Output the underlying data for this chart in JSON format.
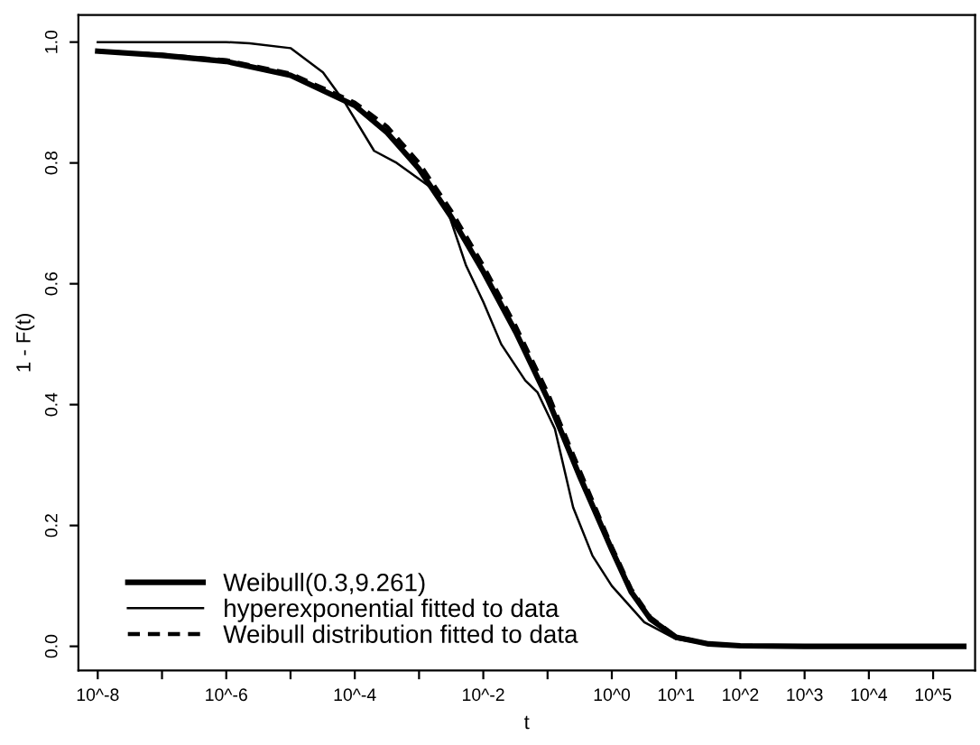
{
  "chart_data": {
    "type": "line",
    "xlabel": "t",
    "ylabel": "1 - F(t)",
    "log": "x",
    "grid": false,
    "legend": "bottom left",
    "marker": "none",
    "xlim": [
      5e-09,
      450000.0
    ],
    "ylim": [
      -0.04,
      1.045
    ],
    "xticks": [
      {
        "value": 1e-08,
        "label": "10^-8"
      },
      {
        "value": 1e-07,
        "label": null
      },
      {
        "value": 1e-06,
        "label": "10^-6"
      },
      {
        "value": 1e-05,
        "label": null
      },
      {
        "value": 0.0001,
        "label": "10^-4"
      },
      {
        "value": 0.001,
        "label": null
      },
      {
        "value": 0.01,
        "label": "10^-2"
      },
      {
        "value": 0.1,
        "label": null
      },
      {
        "value": 1,
        "label": "10^0"
      },
      {
        "value": 10,
        "label": "10^1"
      },
      {
        "value": 100,
        "label": "10^2"
      },
      {
        "value": 1000,
        "label": "10^3"
      },
      {
        "value": 10000,
        "label": "10^4"
      },
      {
        "value": 100000,
        "label": "10^5"
      }
    ],
    "yticks": [
      {
        "value": 0,
        "label": "0.0"
      },
      {
        "value": 0.2,
        "label": "0.2"
      },
      {
        "value": 0.4,
        "label": "0.4"
      },
      {
        "value": 0.6,
        "label": "0.6"
      },
      {
        "value": 0.8,
        "label": "0.8"
      },
      {
        "value": 1,
        "label": "1.0"
      }
    ],
    "series": [
      {
        "name": "Weibull(0.3,9.261)",
        "color": "#000000",
        "line_style": "solid",
        "x": [
          1e-08,
          1e-07,
          1e-06,
          1e-05,
          0.0001,
          0.00032,
          0.001,
          0.0032,
          0.01,
          0.032,
          0.1,
          0.32,
          1,
          2,
          4,
          10,
          32,
          100,
          1000,
          300000
        ],
        "values": [
          0.985,
          0.978,
          0.968,
          0.945,
          0.895,
          0.85,
          0.79,
          0.71,
          0.62,
          0.52,
          0.41,
          0.28,
          0.16,
          0.09,
          0.045,
          0.015,
          0.004,
          0.001,
          0,
          0
        ]
      },
      {
        "name": "hyperexponential fitted to data",
        "color": "#000000",
        "line_style": "solid",
        "x": [
          1e-08,
          1e-06,
          2.3e-06,
          1e-05,
          3.2e-05,
          7e-05,
          0.0002,
          0.00045,
          0.0015,
          0.0028,
          0.0054,
          0.01,
          0.019,
          0.045,
          0.07,
          0.13,
          0.25,
          0.5,
          1,
          3.2,
          10,
          32,
          100,
          300000
        ],
        "values": [
          1.0,
          1.0,
          0.998,
          0.99,
          0.95,
          0.9,
          0.82,
          0.8,
          0.76,
          0.72,
          0.63,
          0.57,
          0.5,
          0.44,
          0.42,
          0.36,
          0.23,
          0.15,
          0.1,
          0.04,
          0.012,
          0.003,
          0,
          0
        ]
      },
      {
        "name": "Weibull distribution fitted to data",
        "color": "#000000",
        "line_style": "dashed",
        "x": [
          1e-08,
          1e-07,
          1e-06,
          1e-05,
          0.0001,
          0.00032,
          0.001,
          0.0032,
          0.01,
          0.032,
          0.1,
          0.32,
          1,
          2,
          4,
          10,
          32,
          100,
          1000,
          300000
        ],
        "values": [
          0.985,
          0.979,
          0.97,
          0.948,
          0.9,
          0.86,
          0.8,
          0.72,
          0.63,
          0.53,
          0.42,
          0.29,
          0.165,
          0.095,
          0.048,
          0.016,
          0.004,
          0.001,
          0,
          0
        ]
      }
    ]
  }
}
